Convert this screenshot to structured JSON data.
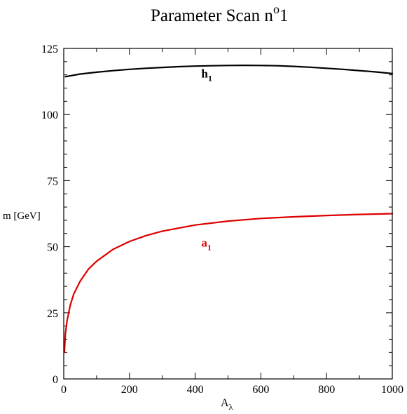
{
  "chart_data": {
    "type": "line",
    "title": "Parameter Scan n",
    "title_superscript": "o",
    "title_suffix": "1",
    "xlabel": "A",
    "xlabel_subscript": "λ",
    "ylabel": "m [GeV]",
    "xlim": [
      0,
      1000
    ],
    "ylim": [
      0,
      125
    ],
    "xticks": [
      0,
      200,
      400,
      600,
      800,
      1000
    ],
    "yticks": [
      0,
      25,
      50,
      75,
      100,
      125
    ],
    "grid": false,
    "legend": "none",
    "series": [
      {
        "name": "h",
        "name_subscript": "1",
        "color": "#000000",
        "label_at": [
          440,
          114
        ],
        "x": [
          5,
          50,
          100,
          150,
          200,
          250,
          300,
          350,
          400,
          450,
          500,
          550,
          600,
          650,
          700,
          750,
          800,
          850,
          900,
          950,
          1000
        ],
        "y": [
          114.3,
          115.3,
          116.0,
          116.6,
          117.1,
          117.5,
          117.8,
          118.1,
          118.3,
          118.45,
          118.55,
          118.6,
          118.55,
          118.45,
          118.2,
          117.9,
          117.5,
          117.1,
          116.6,
          116.1,
          115.5
        ]
      },
      {
        "name": "a",
        "name_subscript": "1",
        "color": "#dd0000",
        "label_at": [
          440,
          50
        ],
        "x": [
          2,
          5,
          10,
          20,
          30,
          50,
          75,
          100,
          150,
          200,
          250,
          300,
          400,
          500,
          600,
          700,
          800,
          900,
          1000
        ],
        "y": [
          10,
          17,
          22,
          28,
          32,
          37,
          41.5,
          44.5,
          49,
          52,
          54.2,
          55.9,
          58.2,
          59.7,
          60.7,
          61.3,
          61.8,
          62.2,
          62.5
        ]
      }
    ]
  }
}
